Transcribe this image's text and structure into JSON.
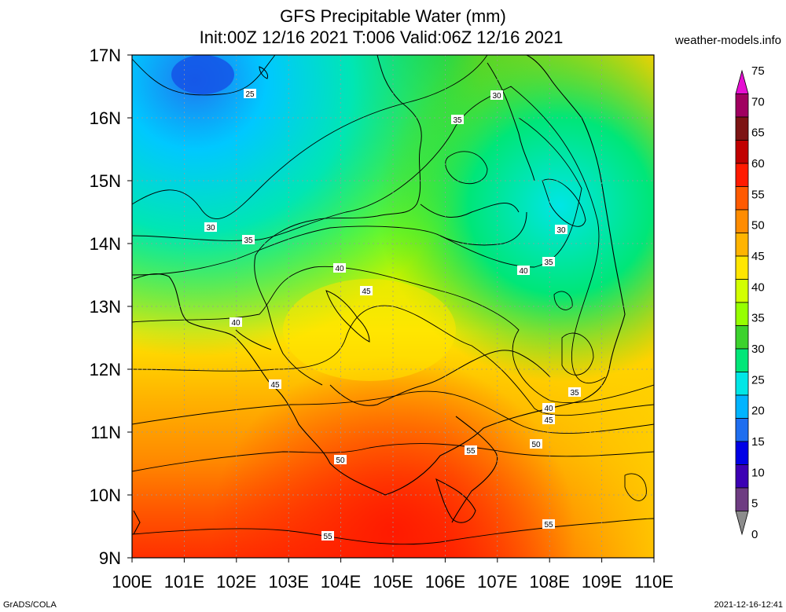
{
  "header": {
    "title_line1": "GFS Precipitable Water (mm)",
    "title_line2": "Init:00Z 12/16 2021 T:006 Valid:06Z 12/16 2021",
    "site": "weather-models.info"
  },
  "footer": {
    "left": "GrADS/COLA",
    "right": "2021-12-16-12:41"
  },
  "map": {
    "lon_labels": [
      "100E",
      "101E",
      "102E",
      "103E",
      "104E",
      "105E",
      "106E",
      "107E",
      "108E",
      "109E",
      "110E"
    ],
    "lat_labels": [
      "17N",
      "16N",
      "15N",
      "14N",
      "13N",
      "12N",
      "11N",
      "10N",
      "9N"
    ]
  },
  "colorbar": {
    "labels": [
      "75",
      "70",
      "65",
      "60",
      "55",
      "50",
      "45",
      "40",
      "35",
      "30",
      "25",
      "20",
      "15",
      "10",
      "5",
      "0"
    ],
    "colors": [
      "#e60fd2",
      "#a00060",
      "#7d1414",
      "#c00000",
      "#ff1a00",
      "#ff5a00",
      "#ff8c00",
      "#ffb400",
      "#ffe600",
      "#d2ff00",
      "#96ff00",
      "#3cd22d",
      "#00e678",
      "#00e6e6",
      "#00b4ff",
      "#1e6ef0",
      "#0000e6",
      "#3c00b4",
      "#6e3c82",
      "#8c8c8c"
    ]
  },
  "contour_labels": [
    {
      "text": "25"
    },
    {
      "text": "30"
    },
    {
      "text": "35"
    },
    {
      "text": "30"
    },
    {
      "text": "35"
    },
    {
      "text": "30"
    },
    {
      "text": "35"
    },
    {
      "text": "40"
    },
    {
      "text": "45"
    },
    {
      "text": "40"
    },
    {
      "text": "40"
    },
    {
      "text": "45"
    },
    {
      "text": "35"
    },
    {
      "text": "40"
    },
    {
      "text": "45"
    },
    {
      "text": "50"
    },
    {
      "text": "50"
    },
    {
      "text": "55"
    },
    {
      "text": "55"
    },
    {
      "text": "55"
    }
  ]
}
